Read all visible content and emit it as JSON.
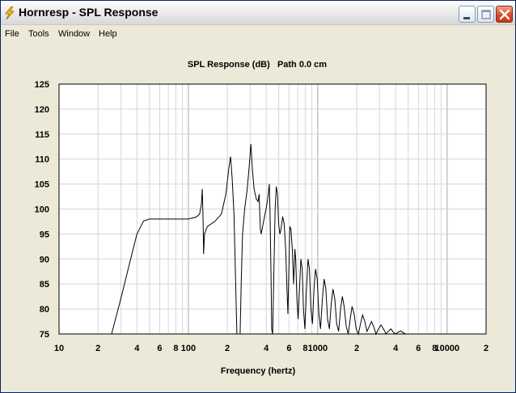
{
  "window": {
    "title": "Hornresp - SPL Response",
    "icon": "lightning-icon"
  },
  "menu": {
    "items": [
      "File",
      "Tools",
      "Window",
      "Help"
    ]
  },
  "chart_data": {
    "type": "line",
    "title": "SPL Response (dB)   Path 0.0 cm",
    "xlabel": "Frequency (hertz)",
    "ylabel": "",
    "x_scale": "log",
    "xlim": [
      10,
      20000
    ],
    "ylim": [
      75,
      125
    ],
    "grid": true,
    "y_ticks": [
      75,
      80,
      85,
      90,
      95,
      100,
      105,
      110,
      115,
      120,
      125
    ],
    "x_tick_labels": [
      {
        "x": 10,
        "label": "10"
      },
      {
        "x": 20,
        "label": "2"
      },
      {
        "x": 40,
        "label": "4"
      },
      {
        "x": 60,
        "label": "6"
      },
      {
        "x": 80,
        "label": "8"
      },
      {
        "x": 100,
        "label": "100"
      },
      {
        "x": 200,
        "label": "2"
      },
      {
        "x": 400,
        "label": "4"
      },
      {
        "x": 600,
        "label": "6"
      },
      {
        "x": 800,
        "label": "8"
      },
      {
        "x": 1000,
        "label": "1000"
      },
      {
        "x": 2000,
        "label": "2"
      },
      {
        "x": 4000,
        "label": "4"
      },
      {
        "x": 6000,
        "label": "6"
      },
      {
        "x": 8000,
        "label": "8"
      },
      {
        "x": 10000,
        "label": "10000"
      },
      {
        "x": 20000,
        "label": "2"
      }
    ],
    "series": [
      {
        "color": "#000000",
        "points": [
          [
            25.5,
            75
          ],
          [
            30,
            82
          ],
          [
            35,
            89
          ],
          [
            40,
            95
          ],
          [
            45,
            97.6
          ],
          [
            50,
            98
          ],
          [
            60,
            98
          ],
          [
            80,
            98
          ],
          [
            100,
            98
          ],
          [
            115,
            98.4
          ],
          [
            122,
            99
          ],
          [
            126,
            101
          ],
          [
            128,
            104
          ],
          [
            130,
            97
          ],
          [
            131,
            91
          ],
          [
            133,
            95
          ],
          [
            140,
            96.5
          ],
          [
            160,
            97.5
          ],
          [
            180,
            99
          ],
          [
            195,
            103
          ],
          [
            205,
            108
          ],
          [
            212,
            110.5
          ],
          [
            218,
            106
          ],
          [
            225,
            99
          ],
          [
            232,
            85
          ],
          [
            237,
            75
          ],
          [
            245,
            75
          ],
          [
            251,
            75
          ],
          [
            256,
            85
          ],
          [
            262,
            95
          ],
          [
            272,
            100
          ],
          [
            285,
            104
          ],
          [
            295,
            108.5
          ],
          [
            304,
            113
          ],
          [
            312,
            108
          ],
          [
            322,
            104
          ],
          [
            335,
            102
          ],
          [
            345,
            101.5
          ],
          [
            352,
            103
          ],
          [
            360,
            96
          ],
          [
            365,
            95
          ],
          [
            378,
            97
          ],
          [
            398,
            100
          ],
          [
            410,
            102
          ],
          [
            422,
            105
          ],
          [
            428,
            99
          ],
          [
            435,
            87
          ],
          [
            440,
            76
          ],
          [
            448,
            75
          ],
          [
            458,
            88
          ],
          [
            468,
            100
          ],
          [
            478,
            104.5
          ],
          [
            488,
            103
          ],
          [
            498,
            97
          ],
          [
            510,
            95
          ],
          [
            520,
            96
          ],
          [
            535,
            98.5
          ],
          [
            550,
            97
          ],
          [
            565,
            92
          ],
          [
            578,
            84
          ],
          [
            588,
            79
          ],
          [
            598,
            88
          ],
          [
            608,
            96.5
          ],
          [
            620,
            96
          ],
          [
            635,
            92
          ],
          [
            650,
            85
          ],
          [
            665,
            92
          ],
          [
            675,
            90
          ],
          [
            690,
            82
          ],
          [
            705,
            78
          ],
          [
            722,
            84
          ],
          [
            740,
            90
          ],
          [
            758,
            88
          ],
          [
            775,
            80
          ],
          [
            795,
            76
          ],
          [
            818,
            84
          ],
          [
            840,
            90
          ],
          [
            862,
            88
          ],
          [
            885,
            80
          ],
          [
            910,
            77
          ],
          [
            935,
            84
          ],
          [
            960,
            88
          ],
          [
            990,
            86
          ],
          [
            1020,
            79
          ],
          [
            1050,
            76
          ],
          [
            1085,
            82
          ],
          [
            1120,
            86
          ],
          [
            1155,
            84
          ],
          [
            1190,
            78
          ],
          [
            1230,
            76
          ],
          [
            1270,
            81
          ],
          [
            1310,
            84
          ],
          [
            1355,
            82
          ],
          [
            1400,
            77
          ],
          [
            1450,
            75.5
          ],
          [
            1500,
            80
          ],
          [
            1550,
            82.5
          ],
          [
            1600,
            80.5
          ],
          [
            1660,
            76.5
          ],
          [
            1720,
            75
          ],
          [
            1780,
            78
          ],
          [
            1840,
            80.5
          ],
          [
            1910,
            79
          ],
          [
            1980,
            76
          ],
          [
            2060,
            75
          ],
          [
            2140,
            77
          ],
          [
            2220,
            78.8
          ],
          [
            2310,
            77.5
          ],
          [
            2400,
            75.5
          ],
          [
            2500,
            76.5
          ],
          [
            2600,
            77.5
          ],
          [
            2700,
            76.5
          ],
          [
            2820,
            75
          ],
          [
            2950,
            76
          ],
          [
            3080,
            76.8
          ],
          [
            3220,
            76
          ],
          [
            3370,
            75
          ],
          [
            3520,
            75.6
          ],
          [
            3680,
            76
          ],
          [
            3850,
            75.3
          ],
          [
            4020,
            75
          ],
          [
            4200,
            75.4
          ],
          [
            4400,
            75.6
          ],
          [
            4600,
            75.2
          ],
          [
            4800,
            75
          ]
        ]
      }
    ]
  }
}
